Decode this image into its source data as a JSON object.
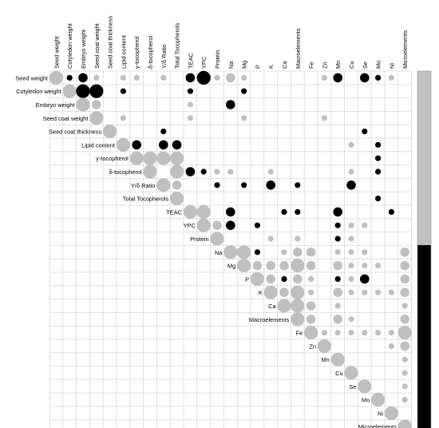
{
  "chart_data": {
    "type": "heatmap",
    "title": "",
    "variables": [
      "Seed weight",
      "Cotyledon weight",
      "Embryo weight",
      "Seed coat weight",
      "Seed coat thickness",
      "Lipid content",
      "γ-tocopherol",
      "δ-tocopherol",
      "Υ/δ Ratio",
      "Total Tocopherols",
      "TEAC",
      "YPC",
      "Protein",
      "Na",
      "Mg",
      "P",
      "K",
      "Ca",
      "Macroelements",
      "Fe",
      "Zn",
      "Mn",
      "Cu",
      "Se",
      "Mo",
      "Ni",
      "Microelements"
    ],
    "size_scale": [
      "small",
      "medium",
      "large"
    ],
    "cells": [
      [
        0,
        0,
        "gray",
        "large"
      ],
      [
        0,
        1,
        "black",
        "small"
      ],
      [
        0,
        2,
        "black",
        "medium"
      ],
      [
        0,
        3,
        "gray",
        "small"
      ],
      [
        0,
        5,
        "gray",
        "small"
      ],
      [
        0,
        6,
        "gray",
        "small"
      ],
      [
        0,
        8,
        "gray",
        "small"
      ],
      [
        0,
        10,
        "black",
        "medium"
      ],
      [
        0,
        11,
        "black",
        "large"
      ],
      [
        0,
        12,
        "gray",
        "small"
      ],
      [
        0,
        13,
        "gray",
        "medium"
      ],
      [
        0,
        14,
        "gray",
        "small"
      ],
      [
        0,
        20,
        "gray",
        "small"
      ],
      [
        0,
        21,
        "black",
        "medium"
      ],
      [
        0,
        23,
        "black",
        "medium"
      ],
      [
        0,
        24,
        "black",
        "small"
      ],
      [
        0,
        25,
        "gray",
        "small"
      ],
      [
        1,
        1,
        "gray",
        "large"
      ],
      [
        1,
        2,
        "black",
        "large"
      ],
      [
        1,
        3,
        "black",
        "large"
      ],
      [
        1,
        5,
        "black",
        "small"
      ],
      [
        1,
        10,
        "black",
        "small"
      ],
      [
        1,
        14,
        "black",
        "small"
      ],
      [
        2,
        2,
        "gray",
        "large"
      ],
      [
        2,
        3,
        "gray",
        "medium"
      ],
      [
        2,
        10,
        "gray",
        "small"
      ],
      [
        2,
        13,
        "black",
        "medium"
      ],
      [
        3,
        3,
        "gray",
        "large"
      ],
      [
        3,
        5,
        "gray",
        "small"
      ],
      [
        3,
        10,
        "gray",
        "small"
      ],
      [
        3,
        14,
        "gray",
        "small"
      ],
      [
        3,
        20,
        "gray",
        "small"
      ],
      [
        4,
        4,
        "gray",
        "large"
      ],
      [
        4,
        8,
        "black",
        "small"
      ],
      [
        4,
        23,
        "black",
        "small"
      ],
      [
        5,
        5,
        "gray",
        "large"
      ],
      [
        5,
        6,
        "black",
        "medium"
      ],
      [
        5,
        8,
        "black",
        "medium"
      ],
      [
        5,
        9,
        "black",
        "medium"
      ],
      [
        5,
        22,
        "gray",
        "small"
      ],
      [
        5,
        24,
        "black",
        "small"
      ],
      [
        6,
        6,
        "gray",
        "large"
      ],
      [
        6,
        7,
        "gray",
        "large"
      ],
      [
        6,
        8,
        "gray",
        "large"
      ],
      [
        6,
        9,
        "gray",
        "large"
      ],
      [
        6,
        24,
        "black",
        "small"
      ],
      [
        7,
        7,
        "gray",
        "large"
      ],
      [
        7,
        9,
        "gray",
        "large"
      ],
      [
        7,
        10,
        "black",
        "medium"
      ],
      [
        7,
        11,
        "black",
        "small"
      ],
      [
        7,
        12,
        "gray",
        "small"
      ],
      [
        7,
        13,
        "gray",
        "small"
      ],
      [
        7,
        16,
        "gray",
        "small"
      ],
      [
        7,
        22,
        "gray",
        "small"
      ],
      [
        7,
        24,
        "black",
        "small"
      ],
      [
        8,
        8,
        "gray",
        "large"
      ],
      [
        8,
        9,
        "gray",
        "medium"
      ],
      [
        8,
        12,
        "black",
        "small"
      ],
      [
        8,
        14,
        "black",
        "small"
      ],
      [
        8,
        16,
        "black",
        "medium"
      ],
      [
        8,
        18,
        "black",
        "small"
      ],
      [
        8,
        22,
        "black",
        "medium"
      ],
      [
        9,
        9,
        "gray",
        "large"
      ],
      [
        9,
        24,
        "black",
        "small"
      ],
      [
        10,
        10,
        "gray",
        "large"
      ],
      [
        10,
        11,
        "gray",
        "large"
      ],
      [
        10,
        13,
        "black",
        "medium"
      ],
      [
        10,
        17,
        "black",
        "small"
      ],
      [
        10,
        18,
        "black",
        "small"
      ],
      [
        10,
        21,
        "black",
        "medium"
      ],
      [
        10,
        25,
        "black",
        "small"
      ],
      [
        11,
        11,
        "gray",
        "large"
      ],
      [
        11,
        12,
        "gray",
        "medium"
      ],
      [
        11,
        13,
        "black",
        "medium"
      ],
      [
        11,
        15,
        "black",
        "small"
      ],
      [
        11,
        21,
        "black",
        "small"
      ],
      [
        11,
        22,
        "gray",
        "small"
      ],
      [
        11,
        23,
        "gray",
        "small"
      ],
      [
        12,
        12,
        "gray",
        "large"
      ],
      [
        12,
        16,
        "gray",
        "small"
      ],
      [
        12,
        18,
        "gray",
        "small"
      ],
      [
        12,
        21,
        "black",
        "small"
      ],
      [
        12,
        22,
        "gray",
        "small"
      ],
      [
        13,
        13,
        "gray",
        "large"
      ],
      [
        13,
        14,
        "gray",
        "large"
      ],
      [
        13,
        15,
        "black",
        "small"
      ],
      [
        13,
        17,
        "gray",
        "small"
      ],
      [
        13,
        18,
        "gray",
        "medium"
      ],
      [
        13,
        19,
        "gray",
        "medium"
      ],
      [
        13,
        21,
        "gray",
        "small"
      ],
      [
        13,
        22,
        "gray",
        "small"
      ],
      [
        13,
        23,
        "gray",
        "small"
      ],
      [
        13,
        26,
        "gray",
        "medium"
      ],
      [
        14,
        14,
        "gray",
        "large"
      ],
      [
        14,
        15,
        "gray",
        "medium"
      ],
      [
        14,
        16,
        "gray",
        "medium"
      ],
      [
        14,
        17,
        "gray",
        "medium"
      ],
      [
        14,
        18,
        "gray",
        "large"
      ],
      [
        14,
        19,
        "gray",
        "medium"
      ],
      [
        14,
        21,
        "gray",
        "medium"
      ],
      [
        14,
        22,
        "gray",
        "small"
      ],
      [
        14,
        23,
        "gray",
        "small"
      ],
      [
        14,
        24,
        "gray",
        "small"
      ],
      [
        14,
        26,
        "gray",
        "medium"
      ],
      [
        15,
        15,
        "gray",
        "large"
      ],
      [
        15,
        16,
        "gray",
        "medium"
      ],
      [
        15,
        17,
        "black",
        "small"
      ],
      [
        15,
        18,
        "gray",
        "medium"
      ],
      [
        15,
        19,
        "gray",
        "small"
      ],
      [
        15,
        21,
        "black",
        "small"
      ],
      [
        15,
        22,
        "gray",
        "small"
      ],
      [
        15,
        23,
        "black",
        "medium"
      ],
      [
        15,
        26,
        "gray",
        "medium"
      ],
      [
        16,
        16,
        "gray",
        "large"
      ],
      [
        16,
        17,
        "gray",
        "medium"
      ],
      [
        16,
        18,
        "gray",
        "large"
      ],
      [
        16,
        19,
        "gray",
        "small"
      ],
      [
        16,
        21,
        "gray",
        "medium"
      ],
      [
        16,
        22,
        "gray",
        "small"
      ],
      [
        16,
        23,
        "gray",
        "small"
      ],
      [
        16,
        24,
        "gray",
        "small"
      ],
      [
        16,
        25,
        "gray",
        "small"
      ],
      [
        16,
        26,
        "gray",
        "medium"
      ],
      [
        17,
        17,
        "gray",
        "large"
      ],
      [
        17,
        18,
        "gray",
        "large"
      ],
      [
        17,
        19,
        "gray",
        "medium"
      ],
      [
        17,
        21,
        "gray",
        "small"
      ],
      [
        17,
        26,
        "gray",
        "small"
      ],
      [
        18,
        18,
        "gray",
        "large"
      ],
      [
        18,
        19,
        "gray",
        "medium"
      ],
      [
        18,
        21,
        "gray",
        "medium"
      ],
      [
        18,
        22,
        "gray",
        "small"
      ],
      [
        18,
        26,
        "gray",
        "medium"
      ],
      [
        19,
        19,
        "gray",
        "large"
      ],
      [
        19,
        20,
        "gray",
        "small"
      ],
      [
        19,
        21,
        "gray",
        "small"
      ],
      [
        19,
        22,
        "gray",
        "small"
      ],
      [
        19,
        23,
        "gray",
        "small"
      ],
      [
        19,
        24,
        "gray",
        "small"
      ],
      [
        19,
        25,
        "gray",
        "small"
      ],
      [
        19,
        26,
        "gray",
        "large"
      ],
      [
        20,
        20,
        "gray",
        "large"
      ],
      [
        20,
        25,
        "gray",
        "small"
      ],
      [
        20,
        26,
        "gray",
        "medium"
      ],
      [
        21,
        21,
        "gray",
        "large"
      ],
      [
        21,
        26,
        "gray",
        "small"
      ],
      [
        22,
        22,
        "gray",
        "large"
      ],
      [
        22,
        26,
        "gray",
        "small"
      ],
      [
        23,
        23,
        "gray",
        "large"
      ],
      [
        23,
        26,
        "gray",
        "small"
      ],
      [
        24,
        24,
        "gray",
        "large"
      ],
      [
        24,
        26,
        "gray",
        "small"
      ],
      [
        25,
        25,
        "gray",
        "large"
      ],
      [
        26,
        26,
        "gray",
        "large"
      ]
    ],
    "legend": {
      "position": "right",
      "type": "color bar",
      "colors": [
        "#c0c0c0",
        "#000000"
      ]
    },
    "colors": {
      "gray": "#bfbfbf",
      "black": "#000000"
    }
  }
}
